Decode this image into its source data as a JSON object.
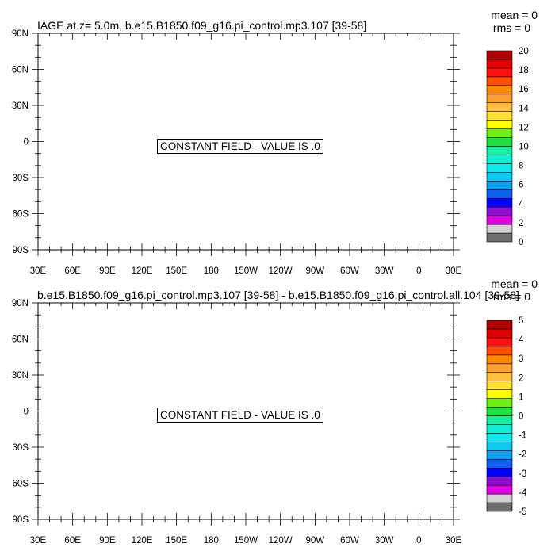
{
  "panels": [
    {
      "title": "IAGE at z=   5.0m, b.e15.B1850.f09_g16.pi_control.mp3.107 [39-58]",
      "mean": "mean = 0",
      "rms": "rms = 0",
      "message": "CONSTANT FIELD - VALUE IS .0",
      "colorbar_labels": [
        "20",
        "18",
        "16",
        "14",
        "12",
        "10",
        "8",
        "6",
        "4",
        "2",
        "0"
      ]
    },
    {
      "title": "b.e15.B1850.f09_g16.pi_control.mp3.107 [39-58] - b.e15.B1850.f09_g16.pi_control.all.104 [39-58]",
      "mean": "mean = 0",
      "rms": "rms = 0",
      "message": "CONSTANT FIELD - VALUE IS .0",
      "colorbar_labels": [
        "5",
        "4",
        "3",
        "2",
        "1",
        "0",
        "-1",
        "-2",
        "-3",
        "-4",
        "-5"
      ]
    }
  ],
  "chart_data": [
    {
      "type": "heatmap",
      "title": "IAGE at z=   5.0m, b.e15.B1850.f09_g16.pi_control.mp3.107 [39-58]",
      "constant_value": 0,
      "x_tick_labels": [
        "30E",
        "60E",
        "90E",
        "120E",
        "150E",
        "180",
        "150W",
        "120W",
        "90W",
        "60W",
        "30W",
        "0",
        "30E"
      ],
      "y_tick_labels": [
        "90N",
        "60N",
        "30N",
        "0",
        "30S",
        "60S",
        "90S"
      ],
      "colorbar_range": [
        0,
        20
      ]
    },
    {
      "type": "heatmap",
      "title": "b.e15.B1850.f09_g16.pi_control.mp3.107 [39-58] - b.e15.B1850.f09_g16.pi_control.all.104 [39-58]",
      "constant_value": 0,
      "x_tick_labels": [
        "30E",
        "60E",
        "90E",
        "120E",
        "150E",
        "180",
        "150W",
        "120W",
        "90W",
        "60W",
        "30W",
        "0",
        "30E"
      ],
      "y_tick_labels": [
        "90N",
        "60N",
        "30N",
        "0",
        "30S",
        "60S",
        "90S"
      ],
      "colorbar_range": [
        -5,
        5
      ]
    }
  ],
  "colorbar_colors": [
    "#6e6e6e",
    "#d2d2d2",
    "#e000e0",
    "#9010d0",
    "#0000ff",
    "#1060f0",
    "#10a0f0",
    "#10c8f0",
    "#10e8f0",
    "#10f0d0",
    "#10f0a0",
    "#20e040",
    "#70f010",
    "#ffff00",
    "#ffe030",
    "#ffc040",
    "#ffa030",
    "#ff8800",
    "#ff5000",
    "#ff1010",
    "#e00000",
    "#b00000"
  ]
}
